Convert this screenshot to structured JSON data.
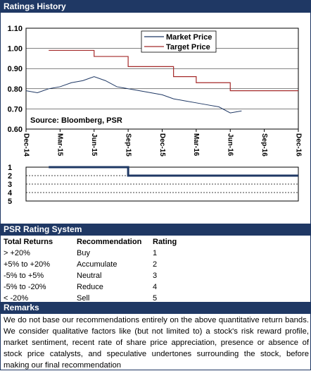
{
  "ratings_history": {
    "title": "Ratings History"
  },
  "chart_data": [
    {
      "type": "line",
      "legend": [
        "Market Price",
        "Target Price"
      ],
      "legend_position": "top-right",
      "annotation": "Source: Bloomberg, PSR",
      "ylim": [
        0.6,
        1.1
      ],
      "y_ticks": [
        "0.60",
        "0.70",
        "0.80",
        "0.90",
        "1.00",
        "1.10"
      ],
      "x_ticks": [
        "Dec-14",
        "Mar-15",
        "Jun-15",
        "Sep-15",
        "Dec-15",
        "Mar-16",
        "Jun-16",
        "Sep-16",
        "Dec-16"
      ],
      "series": [
        {
          "name": "Market Price",
          "color": "#1f3864",
          "x": [
            "Dec-14",
            "Jan-15",
            "Feb-15",
            "Mar-15",
            "Apr-15",
            "May-15",
            "Jun-15",
            "Jul-15",
            "Aug-15",
            "Sep-15",
            "Oct-15",
            "Nov-15",
            "Dec-15",
            "Jan-16",
            "Feb-16",
            "Mar-16",
            "Apr-16",
            "May-16",
            "Jun-16",
            "Jul-16"
          ],
          "values": [
            0.79,
            0.78,
            0.8,
            0.81,
            0.83,
            0.84,
            0.86,
            0.84,
            0.81,
            0.8,
            0.79,
            0.78,
            0.77,
            0.75,
            0.74,
            0.73,
            0.72,
            0.71,
            0.68,
            0.69
          ]
        },
        {
          "name": "Target Price",
          "color": "#a52a2a",
          "steps": [
            {
              "from": "Feb-15",
              "to": "Jun-15",
              "value": 0.99
            },
            {
              "from": "Jun-15",
              "to": "Sep-15",
              "value": 0.96
            },
            {
              "from": "Sep-15",
              "to": "Jan-16",
              "value": 0.91
            },
            {
              "from": "Jan-16",
              "to": "Mar-16",
              "value": 0.86
            },
            {
              "from": "Mar-16",
              "to": "Jun-16",
              "value": 0.83
            },
            {
              "from": "Jun-16",
              "to": "Dec-16",
              "value": 0.79
            }
          ]
        }
      ]
    },
    {
      "type": "line",
      "y_ticks": [
        "1",
        "2",
        "3",
        "4",
        "5"
      ],
      "ylim": [
        1,
        5
      ],
      "series": [
        {
          "name": "Rating",
          "color": "#1f3864",
          "steps": [
            {
              "from": "Feb-15",
              "to": "Sep-15",
              "value": 1
            },
            {
              "from": "Sep-15",
              "to": "Dec-16",
              "value": 2
            }
          ]
        }
      ]
    }
  ],
  "psr_rating_system": {
    "title": "PSR Rating System",
    "headers": [
      "Total Returns",
      "Recommendation",
      "Rating"
    ],
    "rows": [
      [
        "> +20%",
        "Buy",
        "1"
      ],
      [
        "+5% to +20%",
        "Accumulate",
        "2"
      ],
      [
        "-5% to +5%",
        "Neutral",
        "3"
      ],
      [
        "-5% to -20%",
        "Reduce",
        "4"
      ],
      [
        "< -20%",
        "Sell",
        "5"
      ]
    ]
  },
  "remarks": {
    "title": "Remarks",
    "text": "We do not base our recommendations entirely on the  above quantitative return bands.  We consider qualitative factors like (but not limited to) a stock's risk reward profile, market sentiment, recent rate of share price appreciation, presence or absence of stock price catalysts, and speculative undertones surrounding the stock, before making our final recommendation"
  }
}
